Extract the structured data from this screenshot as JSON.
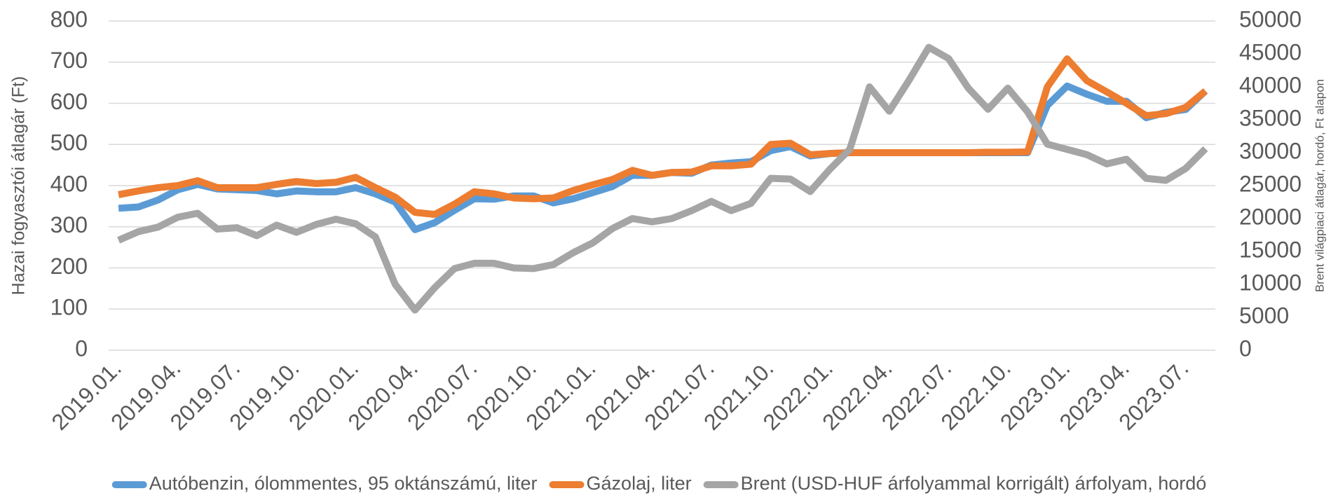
{
  "chart_data": {
    "type": "line",
    "y_label": "Hazai fogyasztói átlagár (Ft)",
    "y2_label": "Brent világpiaci átlagár, hordó, Ft alapon",
    "categories": [
      "2019.01.",
      null,
      null,
      "2019.04.",
      null,
      null,
      "2019.07.",
      null,
      null,
      "2019.10.",
      null,
      null,
      "2020.01.",
      null,
      null,
      "2020.04.",
      null,
      null,
      "2020.07.",
      null,
      null,
      "2020.10.",
      null,
      null,
      "2021.01.",
      null,
      null,
      "2021.04.",
      null,
      null,
      "2021.07.",
      null,
      null,
      "2021.10.",
      null,
      null,
      "2022.01.",
      null,
      null,
      "2022.04.",
      null,
      null,
      "2022.07.",
      null,
      null,
      "2022.10.",
      null,
      null,
      "2023.01.",
      null,
      null,
      "2023.04.",
      null,
      null,
      "2023.07.",
      null
    ],
    "series": [
      {
        "name": "Autóbenzin, ólommentes, 95 oktánszámú, liter",
        "color": "#5b9bd5",
        "values": [
          345,
          348,
          365,
          390,
          403,
          392,
          390,
          388,
          380,
          387,
          385,
          385,
          395,
          380,
          360,
          293,
          310,
          340,
          368,
          367,
          375,
          375,
          358,
          368,
          383,
          398,
          425,
          425,
          432,
          430,
          450,
          455,
          458,
          485,
          495,
          472,
          478,
          480,
          480,
          480,
          480,
          480,
          480,
          480,
          480,
          480,
          480,
          595,
          642,
          622,
          605,
          605,
          565,
          578,
          585,
          630
        ]
      },
      {
        "name": "Gázolaj, liter",
        "color": "#ed7d31",
        "values": [
          378,
          387,
          395,
          400,
          412,
          395,
          395,
          395,
          403,
          410,
          405,
          408,
          420,
          395,
          372,
          335,
          330,
          355,
          385,
          380,
          370,
          368,
          370,
          388,
          402,
          415,
          437,
          425,
          432,
          433,
          448,
          448,
          452,
          500,
          503,
          475,
          478,
          480,
          480,
          480,
          480,
          480,
          480,
          480,
          481,
          481,
          482,
          640,
          708,
          655,
          628,
          600,
          570,
          575,
          590,
          630
        ]
      },
      {
        "name": "Brent (USD-HUF árfolyammal korrigált) árfolyam, hordó",
        "color": "#a5a5a5",
        "axis": "y2",
        "values": [
          16700,
          18000,
          18700,
          20200,
          20800,
          18400,
          18600,
          17400,
          19000,
          17900,
          19100,
          19900,
          19200,
          17200,
          10000,
          6100,
          9500,
          12400,
          13200,
          13200,
          12500,
          12400,
          13000,
          14800,
          16300,
          18500,
          20000,
          19500,
          20000,
          21200,
          22600,
          21200,
          22300,
          26100,
          26000,
          24100,
          27500,
          30500,
          40000,
          36300,
          41000,
          46000,
          44300,
          39800,
          36600,
          39800,
          36200,
          31300,
          30500,
          29700,
          28300,
          29000,
          26100,
          25800,
          27600,
          30600
        ]
      }
    ],
    "ylim": [
      0,
      800
    ],
    "yticks": [
      0,
      100,
      200,
      300,
      400,
      500,
      600,
      700,
      800
    ],
    "y2lim": [
      0,
      50000
    ],
    "y2ticks": [
      0,
      5000,
      10000,
      15000,
      20000,
      25000,
      30000,
      35000,
      40000,
      45000,
      50000
    ],
    "grid": true,
    "legend": "bottom"
  }
}
